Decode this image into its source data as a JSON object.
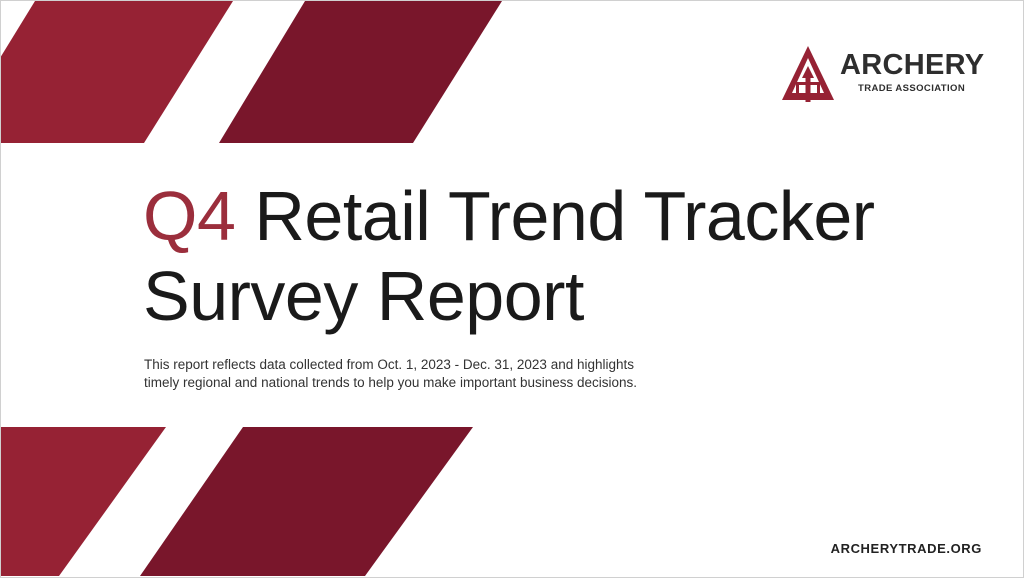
{
  "logo": {
    "name": "ARCHERY",
    "subtitle": "TRADE ASSOCIATION",
    "icon": "arrow-triangle-logo"
  },
  "title": {
    "highlight": "Q4",
    "line1_rest": "Retail Trend Tracker",
    "line2": "Survey Report"
  },
  "subtitle": {
    "line1": "This report reflects data collected from Oct. 1, 2023 - Dec. 31, 2023 and highlights",
    "line2": "timely regional and national trends to help you make important business decisions."
  },
  "footer": {
    "url": "ARCHERYTRADE.ORG"
  },
  "colors": {
    "band_light": "#962234",
    "band_dark": "#79162b",
    "accent_text": "#9b2e3c",
    "text": "#1a1a1a"
  }
}
